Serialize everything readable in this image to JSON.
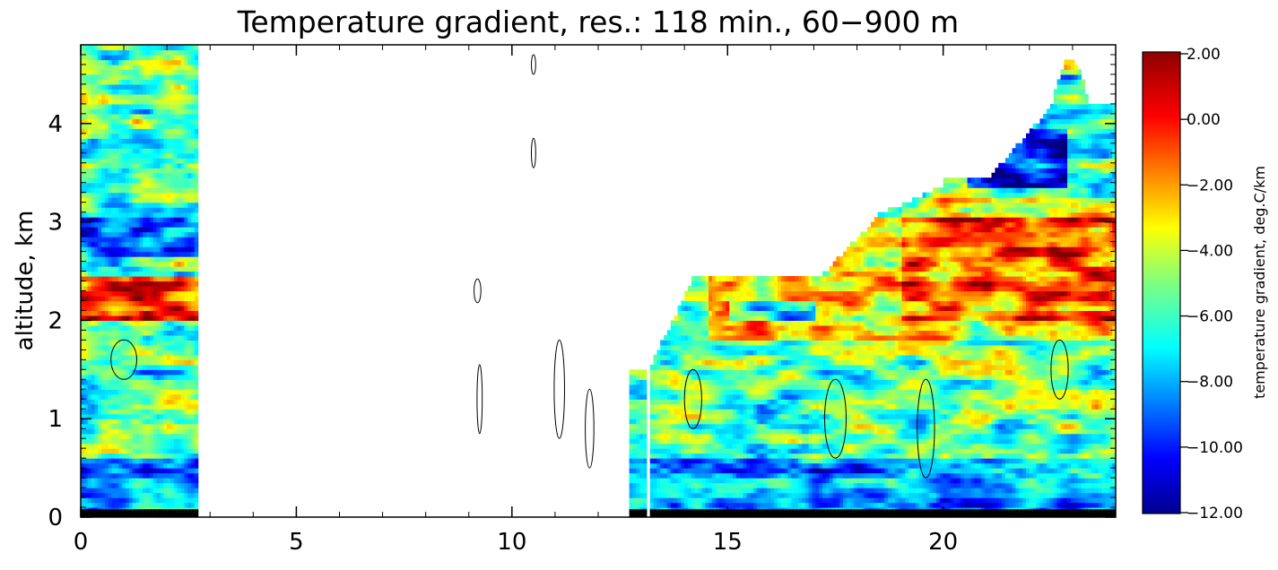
{
  "chart_data": {
    "type": "heatmap",
    "title": "Temperature gradient, res.: 118 min.,  60−900 m",
    "xlabel": "",
    "ylabel": "altitude, km",
    "xlim": [
      0,
      24
    ],
    "ylim": [
      0,
      4.8
    ],
    "x_ticks": [
      "0",
      "5",
      "10",
      "15",
      "20"
    ],
    "y_ticks": [
      "0",
      "1",
      "2",
      "3",
      "4"
    ],
    "colorbar": {
      "label": "temperature gradient,  deg.C/km",
      "range": [
        -12.0,
        2.0
      ],
      "ticks": [
        "2.00",
        "0.00",
        "−2.00",
        "−4.00",
        "−6.00",
        "−8.00",
        "−10.00",
        "−12.00"
      ]
    },
    "data_regions": [
      {
        "x": [
          0,
          2.7
        ],
        "top_km": 4.8
      },
      {
        "x": [
          12.75,
          13.1
        ],
        "top_km": 1.5
      },
      {
        "x": [
          13.2,
          24
        ],
        "top_km": "varies 1.5–4.7"
      }
    ]
  }
}
